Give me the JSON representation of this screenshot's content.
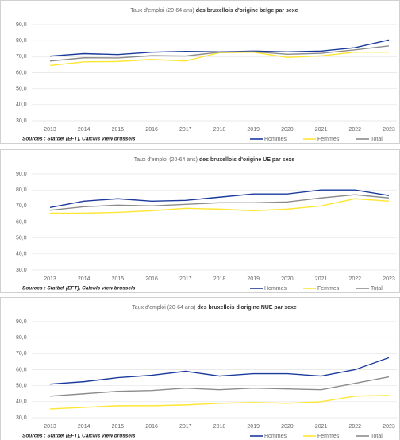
{
  "chart_data": [
    {
      "type": "line",
      "title": {
        "regular": "Taux d'emploi (20-64 ans)",
        "bold": "des bruxellois d'origine belge par sexe"
      },
      "source": "Sources : Statbel (EFT), Calculs view.brussels",
      "categories": [
        "2013",
        "2014",
        "2015",
        "2016",
        "2017",
        "2018",
        "2019",
        "2020",
        "2021",
        "2022",
        "2023"
      ],
      "series": [
        {
          "name": "Hommes",
          "color": "#1b3a9c",
          "values": [
            70.3,
            71.9,
            71.3,
            72.8,
            73.3,
            73,
            73.5,
            73,
            73.5,
            75.6,
            80.4
          ]
        },
        {
          "name": "Femmes",
          "color": "#ffe633",
          "values": [
            64.5,
            66.8,
            67,
            68.3,
            67.3,
            72.5,
            72.8,
            69.5,
            70.5,
            72.8,
            72.8
          ]
        },
        {
          "name": "Total",
          "color": "#8c8c8c",
          "values": [
            67.3,
            69.3,
            69.2,
            70.6,
            70.4,
            72.8,
            73.1,
            71.5,
            72.1,
            74.2,
            76.7
          ]
        }
      ],
      "ylim": [
        30,
        90
      ],
      "yticks": [
        {
          "value": 30,
          "label": "30,0"
        },
        {
          "value": 40,
          "label": "40,0"
        },
        {
          "value": 50,
          "label": "50,0"
        },
        {
          "value": 60,
          "label": "60,0"
        },
        {
          "value": 70,
          "label": "70,0"
        },
        {
          "value": 80,
          "label": "80,0"
        },
        {
          "value": 90,
          "label": "90,0"
        }
      ],
      "grid": true,
      "legend": "bottom-right"
    },
    {
      "type": "line",
      "title": {
        "regular": "Taux d'emploi (20-64 ans)",
        "bold": "des bruxellois d'origine UE par sexe"
      },
      "source": "Sources : Statbel (EFT), Calculs view.brussels",
      "categories": [
        "2013",
        "2014",
        "2015",
        "2016",
        "2017",
        "2018",
        "2019",
        "2020",
        "2021",
        "2022",
        "2023"
      ],
      "series": [
        {
          "name": "Hommes",
          "color": "#1b3a9c",
          "values": [
            69,
            73,
            74.5,
            73,
            73.5,
            75.5,
            77.5,
            77.5,
            80,
            80,
            76.5
          ]
        },
        {
          "name": "Femmes",
          "color": "#ffe633",
          "values": [
            65.5,
            65.5,
            66,
            67,
            68.5,
            68,
            67,
            68,
            70,
            74.5,
            73
          ]
        },
        {
          "name": "Total",
          "color": "#8c8c8c",
          "values": [
            67.3,
            69.5,
            70.5,
            70,
            71,
            72,
            72,
            72.5,
            75,
            77,
            75
          ]
        }
      ],
      "ylim": [
        30,
        90
      ],
      "yticks": [
        {
          "value": 30,
          "label": "30,0"
        },
        {
          "value": 40,
          "label": "40,0"
        },
        {
          "value": 50,
          "label": "50,0"
        },
        {
          "value": 60,
          "label": "60,0"
        },
        {
          "value": 70,
          "label": "70,0"
        },
        {
          "value": 80,
          "label": "80,0"
        },
        {
          "value": 90,
          "label": "90,0"
        }
      ],
      "grid": true,
      "legend": "bottom-right"
    },
    {
      "type": "line",
      "title": {
        "regular": "Taux d'emploi (20-64 ans)",
        "bold": "des bruxellois d'origine NUE par sexe"
      },
      "source": "Sources : Statbel (EFT), Calculs view.brussels",
      "categories": [
        "2013",
        "2014",
        "2015",
        "2016",
        "2017",
        "2018",
        "2019",
        "2020",
        "2021",
        "2022",
        "2023"
      ],
      "series": [
        {
          "name": "Hommes",
          "color": "#1b3a9c",
          "values": [
            51,
            52.5,
            55,
            56.5,
            59,
            56,
            57.5,
            57.5,
            56,
            60,
            67.5
          ]
        },
        {
          "name": "Femmes",
          "color": "#ffe633",
          "values": [
            35.5,
            36.5,
            37.5,
            37.5,
            38,
            39,
            39.5,
            39,
            40,
            43.5,
            44
          ]
        },
        {
          "name": "Total",
          "color": "#8c8c8c",
          "values": [
            43.5,
            45,
            46.5,
            47,
            48.5,
            47.5,
            48.5,
            48,
            47.5,
            51.5,
            55.5
          ]
        }
      ],
      "ylim": [
        30,
        90
      ],
      "yticks": [
        {
          "value": 30,
          "label": "30,0"
        },
        {
          "value": 40,
          "label": "40,0"
        },
        {
          "value": 50,
          "label": "50,0"
        },
        {
          "value": 60,
          "label": "60,0"
        },
        {
          "value": 70,
          "label": "70,0"
        },
        {
          "value": 80,
          "label": "80,0"
        },
        {
          "value": 90,
          "label": "90,0"
        }
      ],
      "grid": true,
      "legend": "bottom-right"
    }
  ]
}
